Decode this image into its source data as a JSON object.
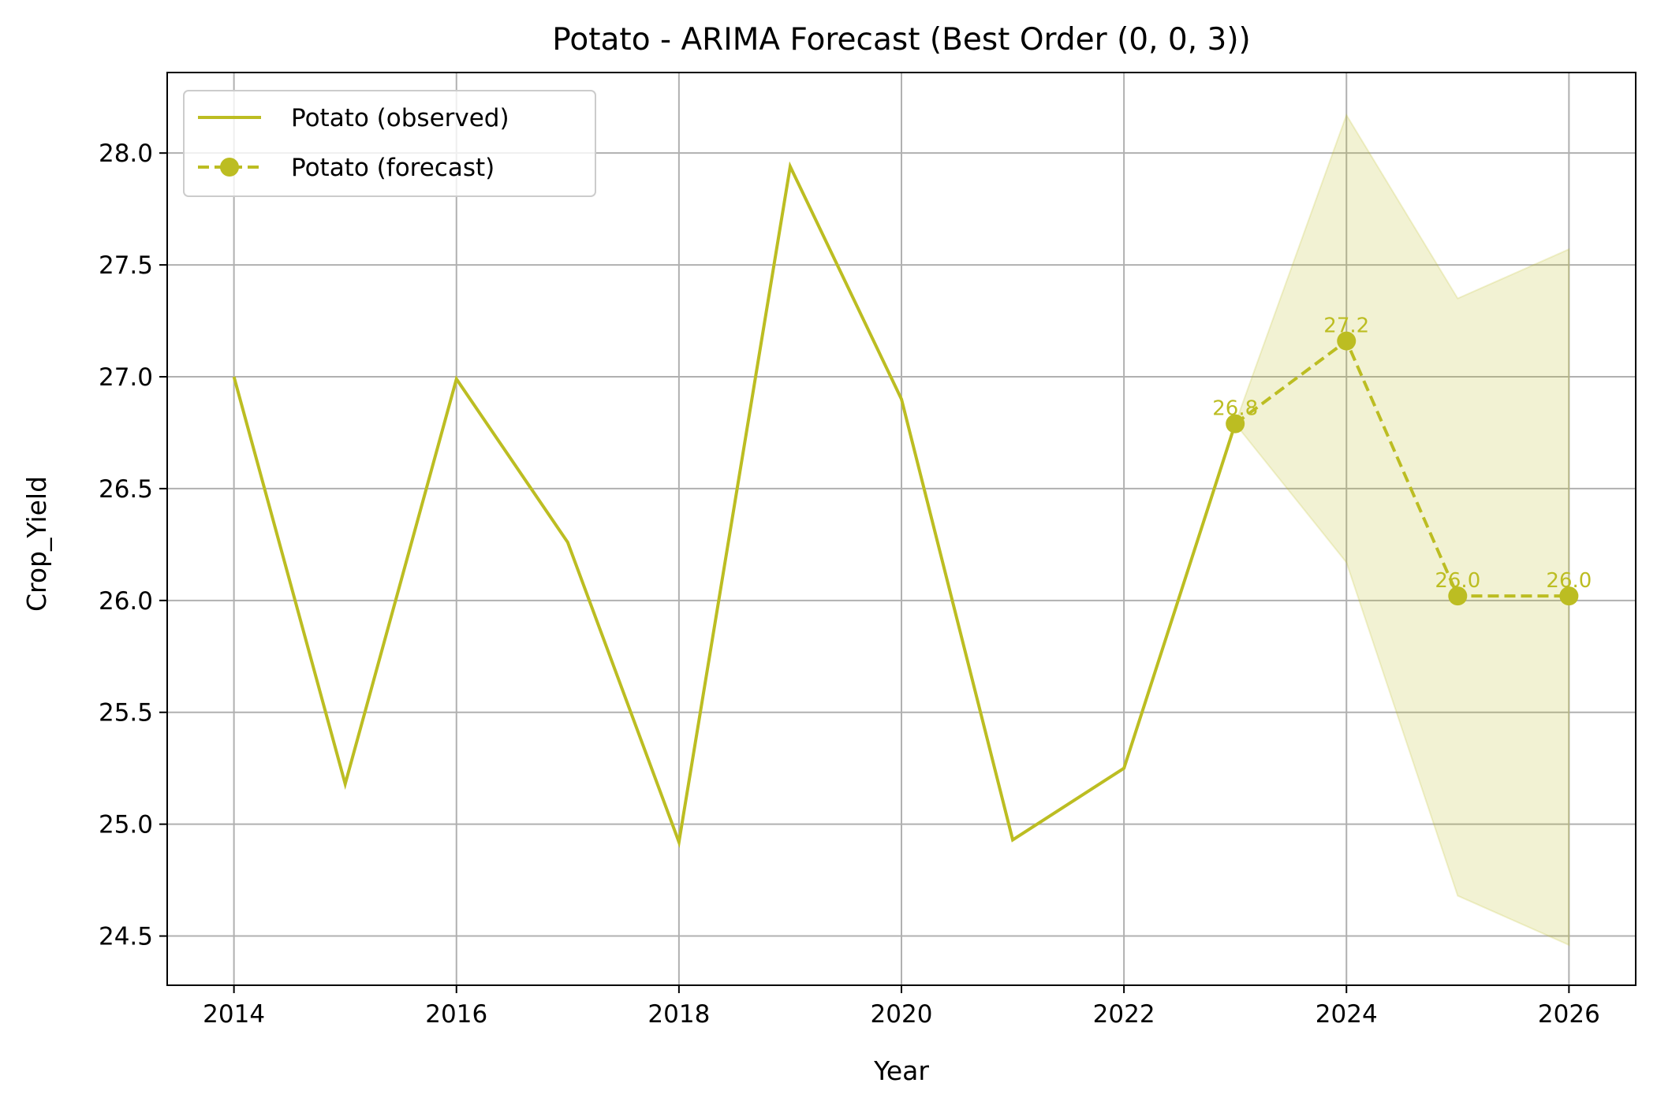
{
  "chart_data": {
    "type": "line",
    "title": "Potato - ARIMA Forecast (Best Order (0, 0, 3))",
    "xlabel": "Year",
    "ylabel": "Crop_Yield",
    "xlim": [
      2013.4,
      2026.6
    ],
    "ylim": [
      24.28,
      28.36
    ],
    "x_ticks": [
      2014,
      2016,
      2018,
      2020,
      2022,
      2024,
      2026
    ],
    "x_tick_labels": [
      "2014",
      "2016",
      "2018",
      "2020",
      "2022",
      "2024",
      "2026"
    ],
    "y_ticks": [
      24.5,
      25.0,
      25.5,
      26.0,
      26.5,
      27.0,
      27.5,
      28.0
    ],
    "y_tick_labels": [
      "24.5",
      "25.0",
      "25.5",
      "26.0",
      "26.5",
      "27.0",
      "27.5",
      "28.0"
    ],
    "grid": true,
    "legend_position": "top-left",
    "color": "#bcbd22",
    "series": [
      {
        "name": "Potato (observed)",
        "style": "solid",
        "x": [
          2014,
          2015,
          2016,
          2017,
          2018,
          2019,
          2020,
          2021,
          2022,
          2023
        ],
        "values": [
          27.0,
          25.18,
          26.99,
          26.26,
          24.92,
          27.94,
          26.9,
          24.93,
          25.25,
          26.79
        ]
      },
      {
        "name": "Potato (forecast)",
        "style": "dashed",
        "marker": "circle",
        "x": [
          2023,
          2024,
          2025,
          2026
        ],
        "values": [
          26.79,
          27.16,
          26.02,
          26.02
        ],
        "data_labels": [
          "26.8",
          "27.2",
          "26.0",
          "26.0"
        ]
      }
    ],
    "confidence_band": {
      "x": [
        2023,
        2024,
        2025,
        2026
      ],
      "lower": [
        26.79,
        26.17,
        24.68,
        24.46
      ],
      "upper": [
        26.79,
        28.17,
        27.35,
        27.57
      ]
    }
  }
}
